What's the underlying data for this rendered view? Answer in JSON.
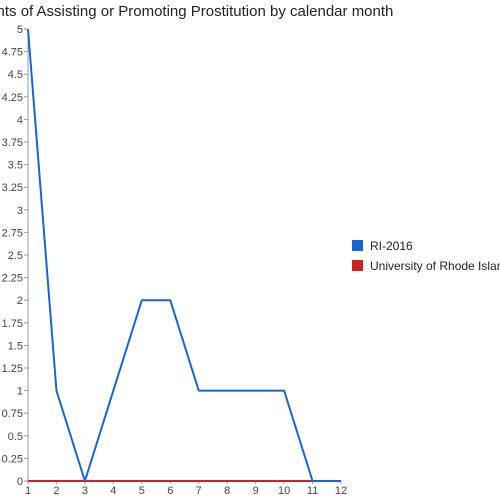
{
  "chart_data": {
    "type": "line",
    "title": "Counts of Assisting or Promoting Prostitution by calendar month",
    "xlabel": "",
    "ylabel": "",
    "x": [
      1,
      2,
      3,
      4,
      5,
      6,
      7,
      8,
      9,
      10,
      11,
      12
    ],
    "xlim": [
      1,
      12
    ],
    "ylim": [
      0,
      5
    ],
    "y_ticks": [
      "0",
      "0.25",
      "0.5",
      "0.75",
      "1",
      "1.25",
      "1.5",
      "1.75",
      "2",
      "2.25",
      "2.5",
      "2.75",
      "3",
      "3.25",
      "3.5",
      "3.75",
      "4",
      "4.25",
      "4.5",
      "4.75",
      "5"
    ],
    "x_ticks": [
      "1",
      "2",
      "3",
      "4",
      "5",
      "6",
      "7",
      "8",
      "9",
      "10",
      "11",
      "12"
    ],
    "grid": false,
    "legend_position": "right",
    "series": [
      {
        "name": "RI-2016",
        "color": "#1a66cc",
        "values": [
          5,
          1,
          0,
          1,
          2,
          2,
          1,
          1,
          1,
          1,
          0,
          0
        ]
      },
      {
        "name": "University of Rhode Island",
        "color": "#cc2222",
        "values": [
          0,
          0,
          0,
          0,
          0,
          0,
          0,
          0,
          0,
          0,
          0,
          0
        ]
      }
    ]
  }
}
